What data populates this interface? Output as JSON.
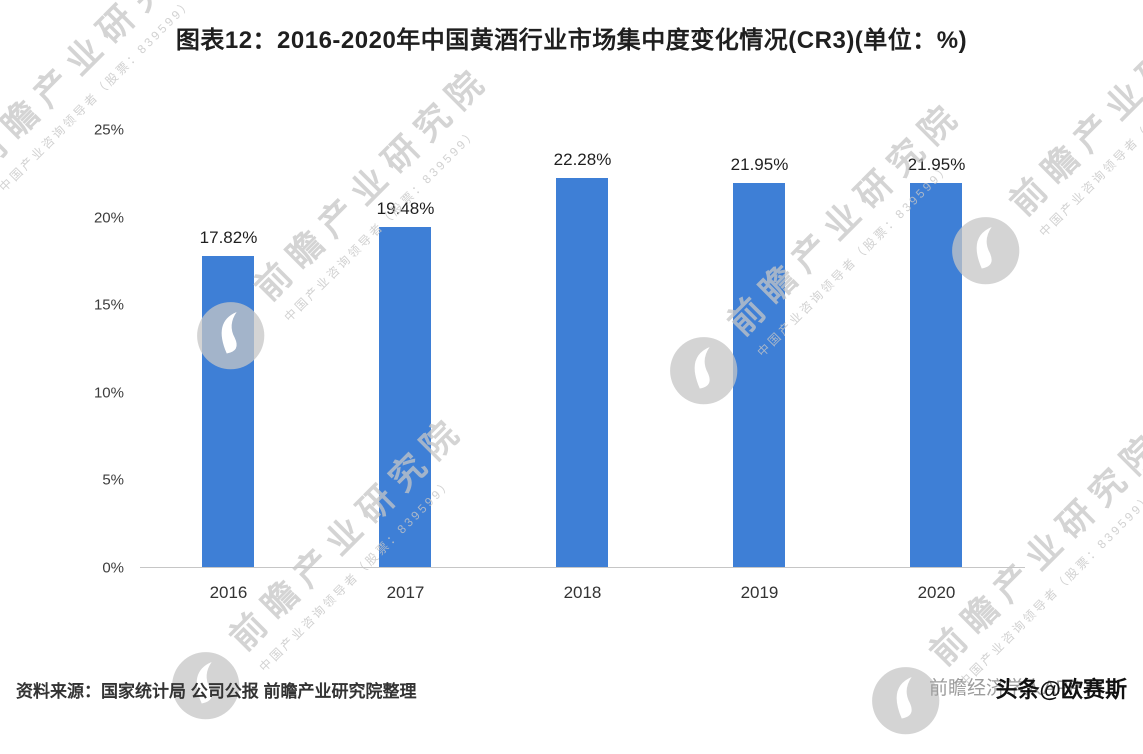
{
  "title": "图表12：2016-2020年中国黄酒行业市场集中度变化情况(CR3)(单位：%)",
  "chart_data": {
    "type": "bar",
    "categories": [
      "2016",
      "2017",
      "2018",
      "2019",
      "2020"
    ],
    "values": [
      17.82,
      19.48,
      22.28,
      21.95,
      21.95
    ],
    "value_labels": [
      "17.82%",
      "19.48%",
      "22.28%",
      "21.95%",
      "21.95%"
    ],
    "title": "图表12：2016-2020年中国黄酒行业市场集中度变化情况(CR3)(单位：%)",
    "xlabel": "",
    "ylabel": "",
    "ylim": [
      0,
      25
    ],
    "yticks": [
      0,
      5,
      10,
      15,
      20,
      25
    ],
    "ytick_labels": [
      "0%",
      "5%",
      "10%",
      "15%",
      "20%",
      "25%"
    ],
    "grid": false,
    "legend": null,
    "bar_color": "#3E7FD6"
  },
  "footer": {
    "source": "资料来源：国家统计局 公司公报 前瞻产业研究院整理",
    "attribution_gray": "前瞻经济学人APP",
    "attribution_black": "头条@欧赛斯"
  },
  "watermark": {
    "text": "前瞻产业研究院",
    "subtext": "中国产业咨询领导者（股票：839599）",
    "color": "#c6c6c6"
  }
}
